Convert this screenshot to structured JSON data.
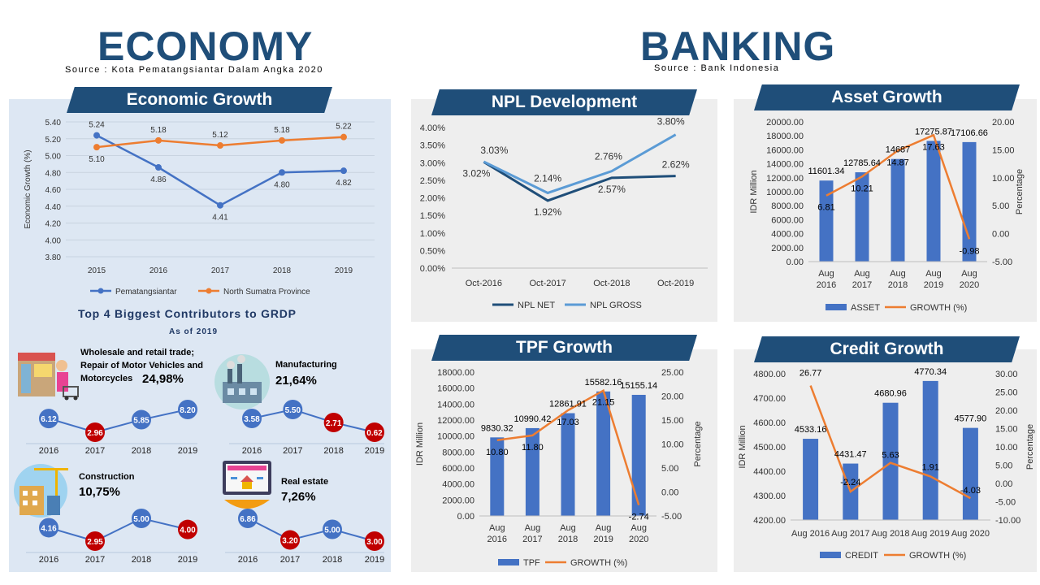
{
  "economy": {
    "title": "ECONOMY",
    "source": "Source : Kota Pematangsiantar Dalam Angka 2020",
    "growth_title": "Economic Growth",
    "contrib_title": "Top 4 Biggest Contributors to GRDP",
    "contrib_sub": "As of 2019",
    "contributors": [
      {
        "name": "Wholesale and retail trade; Repair of Motor Vehicles and Motorcycles",
        "pct": "24,98%",
        "values": [
          "6.12",
          "2.96",
          "5.85",
          "8.20"
        ],
        "colors": [
          "#4472c4",
          "#c00000",
          "#4472c4",
          "#4472c4"
        ]
      },
      {
        "name": "Manufacturing",
        "pct": "21,64%",
        "values": [
          "3.58",
          "5.50",
          "2.71",
          "0.62"
        ],
        "colors": [
          "#4472c4",
          "#4472c4",
          "#c00000",
          "#c00000"
        ]
      },
      {
        "name": "Construction",
        "pct": "10,75%",
        "values": [
          "4.16",
          "2.95",
          "5.00",
          "4.00"
        ],
        "colors": [
          "#4472c4",
          "#c00000",
          "#4472c4",
          "#c00000"
        ]
      },
      {
        "name": "Real estate",
        "pct": "7,26%",
        "values": [
          "6.86",
          "3.20",
          "5.00",
          "3.00"
        ],
        "colors": [
          "#4472c4",
          "#c00000",
          "#4472c4",
          "#c00000"
        ]
      }
    ],
    "contrib_years": [
      "2016",
      "2017",
      "2018",
      "2019"
    ]
  },
  "banking": {
    "title": "BANKING",
    "source": "Source : Bank Indonesia",
    "npl_title": "NPL Development",
    "asset_title": "Asset Growth",
    "tpf_title": "TPF Growth",
    "credit_title": "Credit Growth"
  },
  "colors": {
    "blue": "#4472c4",
    "orange": "#ed7d31",
    "navy": "#1f4e79",
    "lightblue": "#5b9bd5",
    "red": "#c00000"
  },
  "chart_data": [
    {
      "id": "econ",
      "type": "line",
      "title": "Economic Growth",
      "categories": [
        "2015",
        "2016",
        "2017",
        "2018",
        "2019"
      ],
      "ylabel": "Economic Growth (%)",
      "ylim": [
        3.8,
        5.4
      ],
      "yticks": [
        "3.80",
        "4.00",
        "4.20",
        "4.40",
        "4.60",
        "4.80",
        "5.00",
        "5.20",
        "5.40"
      ],
      "series": [
        {
          "name": "Pematangsiantar",
          "values": [
            5.24,
            4.86,
            4.41,
            4.8,
            4.82
          ],
          "labels": [
            "5.24",
            "4.86",
            "4.41",
            "4.80",
            "4.82"
          ]
        },
        {
          "name": "North Sumatra Province",
          "values": [
            5.1,
            5.18,
            5.12,
            5.18,
            5.22
          ],
          "labels": [
            "5.10",
            "5.18",
            "5.12",
            "5.18",
            "5.22"
          ]
        }
      ],
      "legend": "bottom",
      "grid": true
    },
    {
      "id": "npl",
      "type": "line",
      "title": "NPL Development",
      "categories": [
        "Oct-2016",
        "Oct-2017",
        "Oct-2018",
        "Oct-2019"
      ],
      "ylim": [
        0,
        4.0
      ],
      "yticks": [
        "0.00%",
        "0.50%",
        "1.00%",
        "1.50%",
        "2.00%",
        "2.50%",
        "3.00%",
        "3.50%",
        "4.00%"
      ],
      "series": [
        {
          "name": "NPL NET",
          "values": [
            3.02,
            1.92,
            2.57,
            2.62
          ],
          "labels": [
            "3.02%",
            "1.92%",
            "2.57%",
            "2.62%"
          ]
        },
        {
          "name": "NPL GROSS",
          "values": [
            3.03,
            2.14,
            2.76,
            3.8
          ],
          "labels": [
            "3.03%",
            "2.14%",
            "2.76%",
            "3.80%"
          ]
        }
      ],
      "legend": "bottom",
      "grid": false
    },
    {
      "id": "asset",
      "type": "bar",
      "title": "Asset Growth",
      "categories": [
        "Aug 2016",
        "Aug 2017",
        "Aug 2018",
        "Aug 2019",
        "Aug 2020"
      ],
      "ylabel": "IDR Million",
      "y2label": "Percentage",
      "ylim": [
        0,
        20000
      ],
      "y2lim": [
        -5,
        20
      ],
      "yticks": [
        "0.00",
        "2000.00",
        "4000.00",
        "6000.00",
        "8000.00",
        "10000.00",
        "12000.00",
        "14000.00",
        "16000.00",
        "18000.00",
        "20000.00"
      ],
      "y2ticks": [
        "-5.00",
        "0.00",
        "5.00",
        "10.00",
        "15.00",
        "20.00"
      ],
      "series": [
        {
          "name": "ASSET",
          "values": [
            11601.34,
            12785.64,
            14687,
            17275.87,
            17106.66
          ],
          "labels": [
            "11601.34",
            "12785.64",
            "14687",
            "17275.87",
            "17106.66"
          ]
        },
        {
          "name": "GROWTH (%)",
          "values": [
            6.81,
            10.21,
            14.87,
            17.63,
            -0.98
          ],
          "labels": [
            "6.81",
            "10.21",
            "14.87",
            "17.63",
            "-0.98"
          ]
        }
      ],
      "legend": "bottom"
    },
    {
      "id": "tpf",
      "type": "bar",
      "title": "TPF Growth",
      "categories": [
        "Aug 2016",
        "Aug 2017",
        "Aug 2018",
        "Aug 2019",
        "Aug 2020"
      ],
      "ylabel": "IDR Million",
      "y2label": "Percentage",
      "ylim": [
        0,
        18000
      ],
      "y2lim": [
        -5,
        25
      ],
      "yticks": [
        "0.00",
        "2000.00",
        "4000.00",
        "6000.00",
        "8000.00",
        "10000.00",
        "12000.00",
        "14000.00",
        "16000.00",
        "18000.00"
      ],
      "y2ticks": [
        "-5.00",
        "0.00",
        "5.00",
        "10.00",
        "15.00",
        "20.00",
        "25.00"
      ],
      "series": [
        {
          "name": "TPF",
          "values": [
            9830.32,
            10990.42,
            12861.91,
            15582.16,
            15155.14
          ],
          "labels": [
            "9830.32",
            "10990.42",
            "12861.91",
            "15582.16",
            "15155.14"
          ]
        },
        {
          "name": "GROWTH (%)",
          "values": [
            10.8,
            11.8,
            17.03,
            21.15,
            -2.74
          ],
          "labels": [
            "10.80",
            "11.80",
            "17.03",
            "21.15",
            "-2.74"
          ]
        }
      ],
      "legend": "bottom"
    },
    {
      "id": "credit",
      "type": "bar",
      "title": "Credit Growth",
      "categories": [
        "Aug 2016",
        "Aug 2017",
        "Aug 2018",
        "Aug 2019",
        "Aug 2020"
      ],
      "ylabel": "IDR Million",
      "y2label": "Percentage",
      "ylim": [
        4200,
        4800
      ],
      "y2lim": [
        -10,
        30
      ],
      "yticks": [
        "4200.00",
        "4300.00",
        "4400.00",
        "4500.00",
        "4600.00",
        "4700.00",
        "4800.00"
      ],
      "y2ticks": [
        "-10.00",
        "-5.00",
        "0.00",
        "5.00",
        "10.00",
        "15.00",
        "20.00",
        "25.00",
        "30.00"
      ],
      "series": [
        {
          "name": "CREDIT",
          "values": [
            4533.16,
            4431.47,
            4680.96,
            4770.34,
            4577.9
          ],
          "labels": [
            "4533.16",
            "4431.47",
            "4680.96",
            "4770.34",
            "4577.90"
          ]
        },
        {
          "name": "GROWTH (%)",
          "values": [
            26.77,
            -2.24,
            5.63,
            1.91,
            -4.03
          ],
          "labels": [
            "26.77",
            "-2.24",
            "5.63",
            "1.91",
            "-4.03"
          ]
        }
      ],
      "legend": "bottom"
    }
  ]
}
